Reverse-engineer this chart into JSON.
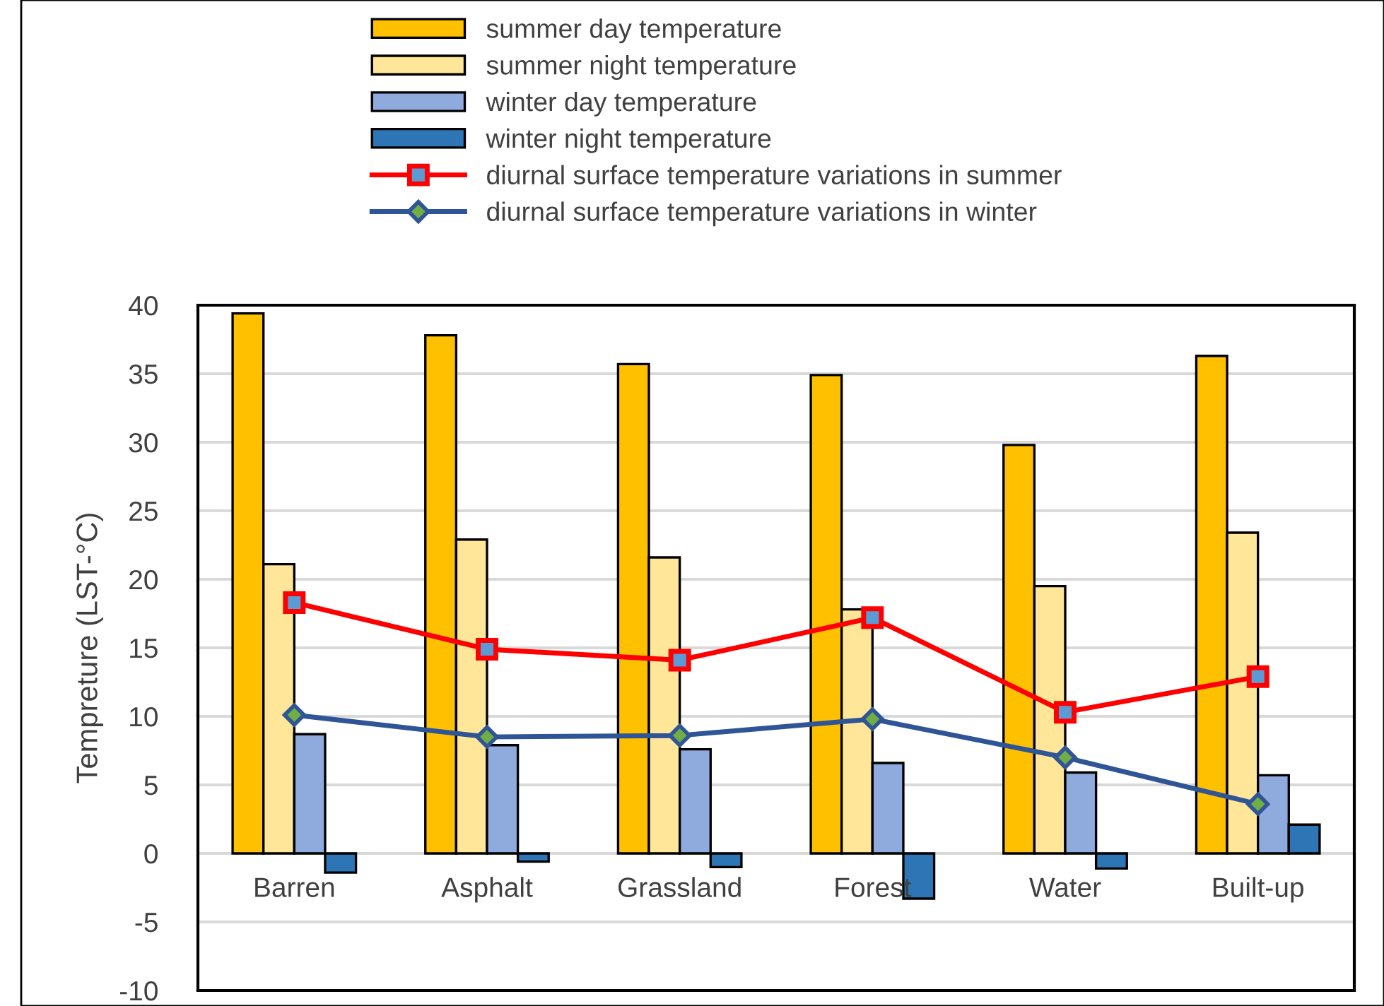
{
  "chart_data": {
    "type": "bar",
    "ylabel": "Tempreture (LST-°C)",
    "categories": [
      "Barren",
      "Asphalt",
      "Grassland",
      "Forest",
      "Water",
      "Built-up"
    ],
    "series": [
      {
        "name": "summer day temperature",
        "color": "#ffc000",
        "values": [
          39.4,
          37.8,
          35.7,
          34.9,
          29.8,
          36.3
        ]
      },
      {
        "name": "summer night temperature",
        "color": "#ffe699",
        "values": [
          21.1,
          22.9,
          21.6,
          17.8,
          19.5,
          23.4
        ]
      },
      {
        "name": "winter day temperature",
        "color": "#8faadc",
        "values": [
          8.7,
          7.9,
          7.6,
          6.6,
          5.9,
          5.7
        ]
      },
      {
        "name": "winter night temperature",
        "color": "#2e75b6",
        "values": [
          -1.4,
          -0.6,
          -1.0,
          -3.3,
          -1.1,
          2.1
        ]
      },
      {
        "name": "diurnal surface temperature variations in summer",
        "type": "line",
        "color": "#ff0000",
        "marker": "square",
        "values": [
          18.3,
          14.9,
          14.1,
          17.2,
          10.3,
          12.9
        ]
      },
      {
        "name": "diurnal surface temperature variations in winter",
        "type": "line",
        "color": "#2f5597",
        "marker": "diamond",
        "values": [
          10.1,
          8.5,
          8.6,
          9.8,
          7.0,
          3.6
        ]
      }
    ],
    "ylim": [
      -10,
      40
    ],
    "yticks": [
      -10,
      -5,
      0,
      5,
      10,
      15,
      20,
      25,
      30,
      35,
      40
    ],
    "grid": "y",
    "legend": "top"
  }
}
